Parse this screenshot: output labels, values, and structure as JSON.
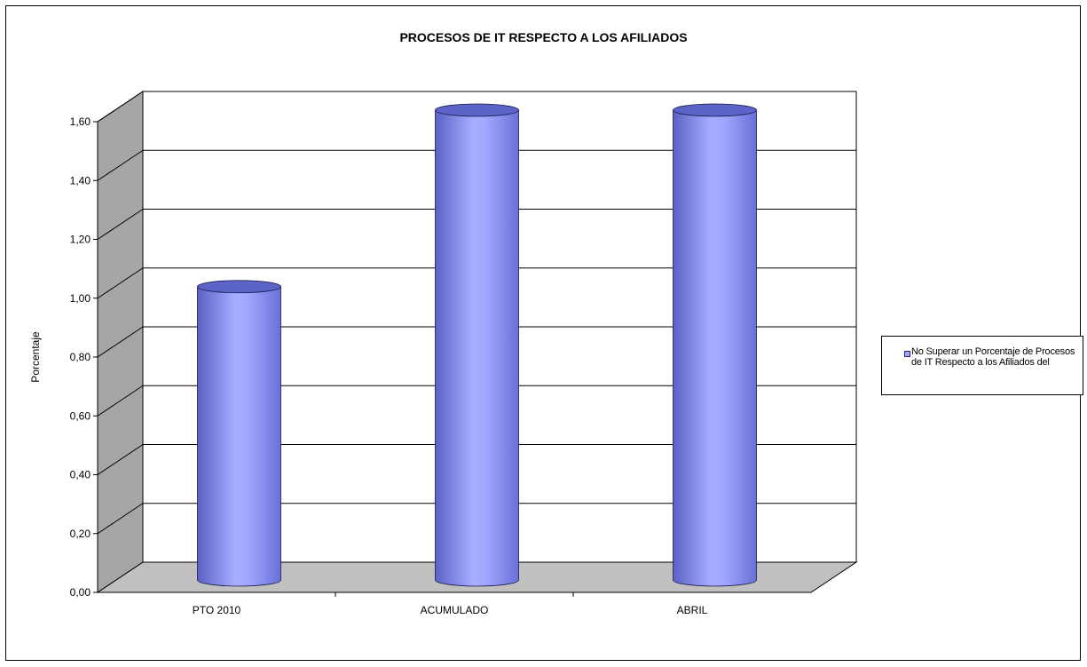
{
  "chart_data": {
    "type": "bar",
    "title": "PROCESOS DE IT RESPECTO A LOS AFILIADOS",
    "xlabel": "",
    "ylabel": "Porcentaje",
    "categories": [
      "PTO 2010",
      "ACUMULADO",
      "ABRIL"
    ],
    "series": [
      {
        "name": "No Superar un Porcentaje de Procesos de IT Respecto a los Afiliados del",
        "values": [
          1.0,
          1.6,
          1.6
        ]
      }
    ],
    "ylim": [
      0,
      1.6
    ],
    "yticks": [
      "0,00",
      "0,20",
      "0,40",
      "0,60",
      "0,80",
      "1,00",
      "1,20",
      "1,40",
      "1,60"
    ],
    "grid": true,
    "legend": "right",
    "style": "3d-cylinder",
    "colors": {
      "bar": "#9fa6ff",
      "bar_dark": "#5c63c9",
      "wall": "#a6a6a6",
      "floor": "#c0c0c0"
    }
  }
}
